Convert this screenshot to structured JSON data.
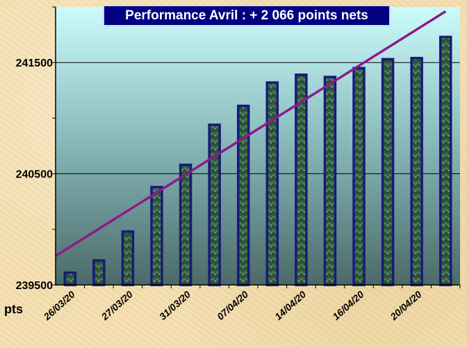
{
  "chart_data": {
    "type": "bar",
    "title": "Performance  Avril : + 2 066 points nets",
    "unit_label": "pts",
    "categories": [
      "26/03/20",
      "",
      "27/03/20",
      "",
      "31/03/20",
      "",
      "07/04/20",
      "",
      "14/04/20",
      "",
      "16/04/20",
      "",
      "20/04/20",
      ""
    ],
    "values": [
      239610,
      239720,
      239980,
      240380,
      240580,
      240940,
      241110,
      241320,
      241390,
      241370,
      241450,
      241530,
      241540,
      241730
    ],
    "ylim": [
      239500,
      242000
    ],
    "yticks": [
      239500,
      240500,
      241500
    ],
    "trendline": {
      "start": 239760,
      "end": 241960
    },
    "grid": true,
    "colors": {
      "bar_fill": "#2d5a3a",
      "bar_border": "#1a1a7a",
      "trend": "#8b1a8b",
      "title_bg": "#000080"
    }
  }
}
